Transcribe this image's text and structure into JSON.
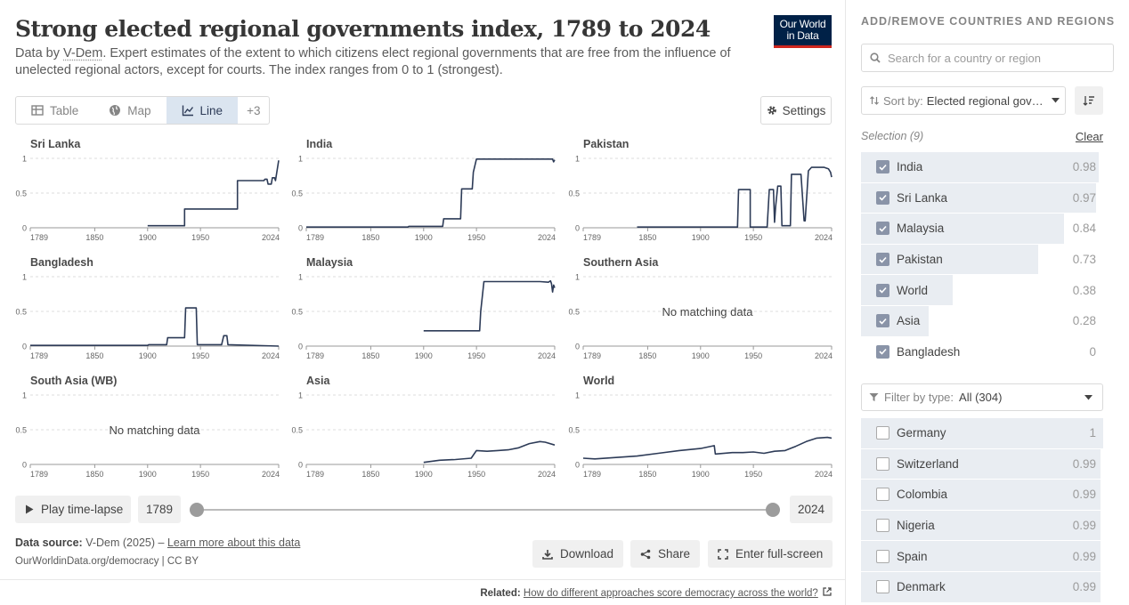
{
  "header": {
    "title": "Strong elected regional governments index, 1789 to 2024",
    "subtitle_prefix": "Data by ",
    "subtitle_source": "V-Dem",
    "subtitle_rest": ". Expert estimates of the extent to which citizens elect regional governments that are free from the influence of unelected regional actors, except for courts. The index ranges from 0 to 1 (strongest).",
    "logo_line1": "Our World",
    "logo_line2": "in Data"
  },
  "tabs": [
    {
      "label": "Table",
      "icon": "table-icon"
    },
    {
      "label": "Map",
      "icon": "globe-icon"
    },
    {
      "label": "Line",
      "icon": "line-chart-icon"
    },
    {
      "label": "+3"
    }
  ],
  "settings_label": "Settings",
  "timeline": {
    "play_label": "Play time-lapse",
    "start_year": "1789",
    "end_year": "2024"
  },
  "footer": {
    "source_label": "Data source:",
    "source_text": "V-Dem (2025) – ",
    "learn_more": "Learn more about this data",
    "citation": "OurWorldinData.org/democracy | CC BY",
    "download": "Download",
    "share": "Share",
    "fullscreen": "Enter full-screen",
    "related_label": "Related:",
    "related_link": "How do different approaches score democracy across the world?"
  },
  "sidebar": {
    "title": "ADD/REMOVE COUNTRIES AND REGIONS",
    "search_placeholder": "Search for a country or region",
    "sort_label": "Sort by:",
    "sort_value": "Elected regional governments",
    "selection_label": "Selection (9)",
    "clear_label": "Clear",
    "selected": [
      {
        "name": "India",
        "value": 0.98,
        "display": "0.98"
      },
      {
        "name": "Sri Lanka",
        "value": 0.97,
        "display": "0.97"
      },
      {
        "name": "Malaysia",
        "value": 0.84,
        "display": "0.84"
      },
      {
        "name": "Pakistan",
        "value": 0.73,
        "display": "0.73"
      },
      {
        "name": "World",
        "value": 0.38,
        "display": "0.38"
      },
      {
        "name": "Asia",
        "value": 0.28,
        "display": "0.28"
      },
      {
        "name": "Bangladesh",
        "value": 0,
        "display": "0"
      }
    ],
    "filter_label": "Filter by type:",
    "filter_value": "All (304)",
    "others": [
      {
        "name": "Germany",
        "value": 1,
        "display": "1"
      },
      {
        "name": "Switzerland",
        "value": 0.99,
        "display": "0.99"
      },
      {
        "name": "Colombia",
        "value": 0.99,
        "display": "0.99"
      },
      {
        "name": "Nigeria",
        "value": 0.99,
        "display": "0.99"
      },
      {
        "name": "Spain",
        "value": 0.99,
        "display": "0.99"
      },
      {
        "name": "Denmark",
        "value": 0.99,
        "display": "0.99"
      }
    ]
  },
  "colors": {
    "line": "#2d3b57",
    "bar": "#e9edf2",
    "accent": "#dbe5f0"
  },
  "chart_data": {
    "type": "line",
    "layout": "small-multiples",
    "x_ticks": [
      "1789",
      "1850",
      "1900",
      "1950",
      "2024"
    ],
    "y_ticks": [
      "0",
      "0.5",
      "1"
    ],
    "xlim": [
      1789,
      2024
    ],
    "ylim": [
      0,
      1
    ],
    "no_data_text": "No matching data",
    "panels": [
      {
        "name": "Sri Lanka",
        "points": [
          [
            1900,
            0.03
          ],
          [
            1935,
            0.03
          ],
          [
            1935,
            0.27
          ],
          [
            1985,
            0.27
          ],
          [
            1985,
            0.68
          ],
          [
            2010,
            0.68
          ],
          [
            2011,
            0.7
          ],
          [
            2013,
            0.7
          ],
          [
            2014,
            0.63
          ],
          [
            2017,
            0.63
          ],
          [
            2018,
            0.72
          ],
          [
            2020,
            0.72
          ],
          [
            2021,
            0.68
          ],
          [
            2024,
            0.97
          ]
        ]
      },
      {
        "name": "India",
        "points": [
          [
            1789,
            0.01
          ],
          [
            1885,
            0.01
          ],
          [
            1886,
            0.02
          ],
          [
            1918,
            0.02
          ],
          [
            1919,
            0.13
          ],
          [
            1935,
            0.13
          ],
          [
            1936,
            0.56
          ],
          [
            1946,
            0.56
          ],
          [
            1947,
            0.8
          ],
          [
            1950,
            0.99
          ],
          [
            2022,
            0.99
          ],
          [
            2023,
            0.95
          ],
          [
            2024,
            0.98
          ]
        ]
      },
      {
        "name": "Pakistan",
        "points": [
          [
            1840,
            0.01
          ],
          [
            1935,
            0.01
          ],
          [
            1936,
            0.55
          ],
          [
            1947,
            0.55
          ],
          [
            1947,
            0.01
          ],
          [
            1963,
            0.01
          ],
          [
            1965,
            0.55
          ],
          [
            1969,
            0.55
          ],
          [
            1970,
            0.08
          ],
          [
            1971,
            0.3
          ],
          [
            1973,
            0.6
          ],
          [
            1976,
            0.6
          ],
          [
            1977,
            0.03
          ],
          [
            1985,
            0.03
          ],
          [
            1986,
            0.77
          ],
          [
            1995,
            0.77
          ],
          [
            1998,
            0.1
          ],
          [
            1999,
            0.1
          ],
          [
            2002,
            0.82
          ],
          [
            2005,
            0.87
          ],
          [
            2017,
            0.87
          ],
          [
            2021,
            0.85
          ],
          [
            2023,
            0.8
          ],
          [
            2024,
            0.73
          ]
        ]
      },
      {
        "name": "Bangladesh",
        "points": [
          [
            1789,
            0.01
          ],
          [
            1900,
            0.01
          ],
          [
            1901,
            0.02
          ],
          [
            1918,
            0.02
          ],
          [
            1919,
            0.12
          ],
          [
            1935,
            0.12
          ],
          [
            1936,
            0.55
          ],
          [
            1946,
            0.55
          ],
          [
            1947,
            0.02
          ],
          [
            1970,
            0.02
          ],
          [
            1972,
            0.15
          ],
          [
            1975,
            0.15
          ],
          [
            1976,
            0.02
          ],
          [
            2024,
            0.0
          ]
        ]
      },
      {
        "name": "Malaysia",
        "points": [
          [
            1900,
            0.22
          ],
          [
            1953,
            0.22
          ],
          [
            1954,
            0.5
          ],
          [
            1957,
            0.93
          ],
          [
            2010,
            0.93
          ],
          [
            2018,
            0.92
          ],
          [
            2020,
            0.94
          ],
          [
            2021,
            0.9
          ],
          [
            2022,
            0.78
          ],
          [
            2023,
            0.88
          ],
          [
            2024,
            0.84
          ]
        ]
      },
      {
        "name": "Southern Asia",
        "points": []
      },
      {
        "name": "South Asia (WB)",
        "points": []
      },
      {
        "name": "Asia",
        "points": [
          [
            1900,
            0.03
          ],
          [
            1915,
            0.06
          ],
          [
            1930,
            0.07
          ],
          [
            1945,
            0.09
          ],
          [
            1950,
            0.2
          ],
          [
            1960,
            0.19
          ],
          [
            1970,
            0.2
          ],
          [
            1980,
            0.21
          ],
          [
            1990,
            0.24
          ],
          [
            2000,
            0.3
          ],
          [
            2010,
            0.33
          ],
          [
            2015,
            0.32
          ],
          [
            2024,
            0.28
          ]
        ]
      },
      {
        "name": "World",
        "points": [
          [
            1789,
            0.09
          ],
          [
            1800,
            0.08
          ],
          [
            1820,
            0.1
          ],
          [
            1840,
            0.12
          ],
          [
            1860,
            0.16
          ],
          [
            1880,
            0.2
          ],
          [
            1900,
            0.23
          ],
          [
            1913,
            0.27
          ],
          [
            1914,
            0.15
          ],
          [
            1930,
            0.17
          ],
          [
            1940,
            0.17
          ],
          [
            1950,
            0.18
          ],
          [
            1960,
            0.16
          ],
          [
            1970,
            0.19
          ],
          [
            1980,
            0.2
          ],
          [
            1990,
            0.26
          ],
          [
            2000,
            0.33
          ],
          [
            2010,
            0.38
          ],
          [
            2020,
            0.39
          ],
          [
            2024,
            0.38
          ]
        ]
      }
    ]
  }
}
